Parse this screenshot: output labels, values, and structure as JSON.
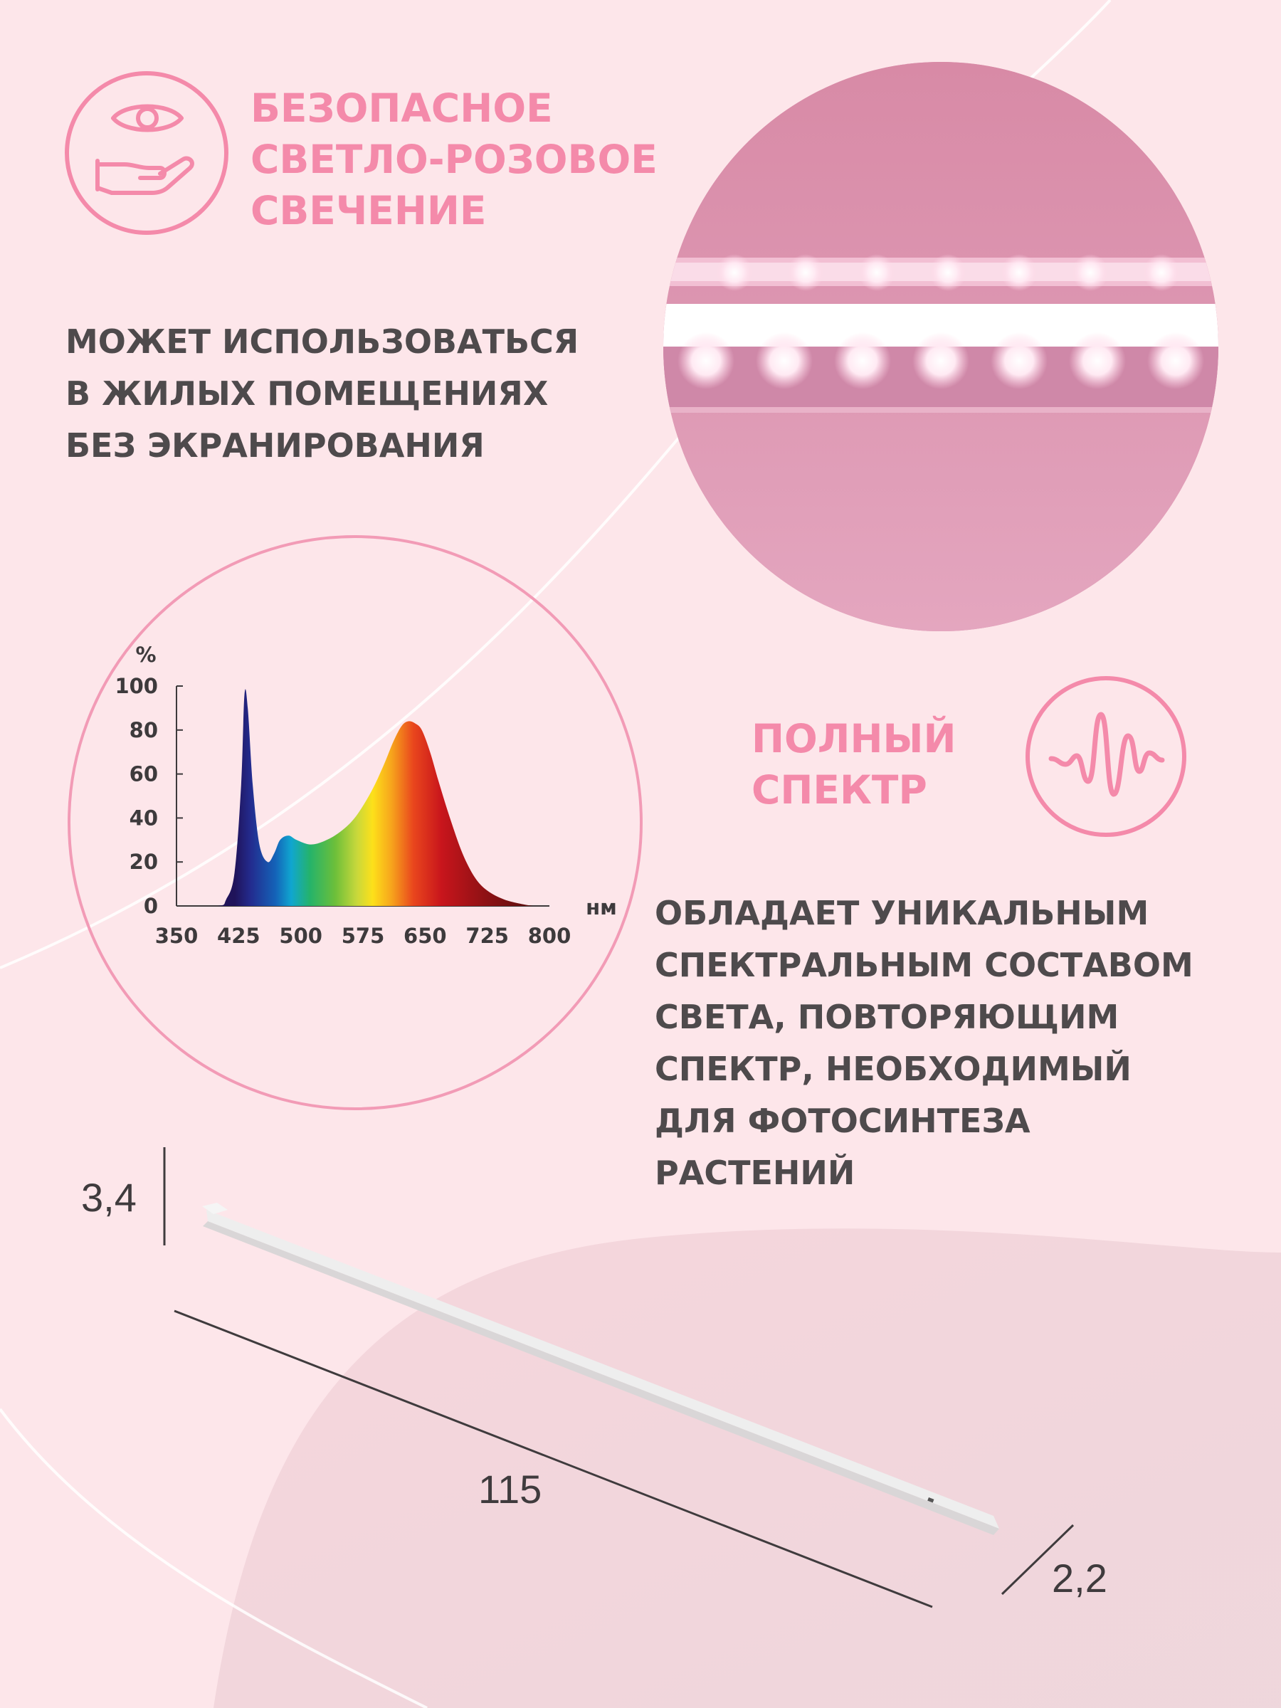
{
  "colors": {
    "background": "#fde6ea",
    "accent_pink": "#f48aaa",
    "text_dark": "#4e4a4c",
    "photo_pink": "#d98fa8"
  },
  "feature_safe": {
    "icon": "eye-hand-icon",
    "title_lines": [
      "БЕЗОПАСНОЕ",
      "СВЕТЛО-РОЗОВОЕ",
      "СВЕЧЕНИЕ"
    ],
    "desc_lines": [
      "МОЖЕТ ИСПОЛЬЗОВАТЬСЯ",
      "В ЖИЛЫХ ПОМЕЩЕНИЯХ",
      "БЕЗ ЭКРАНИРОВАНИЯ"
    ]
  },
  "feature_spectrum": {
    "icon": "waveform-icon",
    "title_lines": [
      "ПОЛНЫЙ",
      "СПЕКТР"
    ],
    "desc_lines": [
      "ОБЛАДАЕТ УНИКАЛЬНЫМ",
      "СПЕКТРАЛЬНЫМ СОСТАВОМ",
      "СВЕТА, ПОВТОРЯЮЩИМ",
      "СПЕКТР, НЕОБХОДИМЫЙ",
      "ДЛЯ ФОТОСИНТЕЗА",
      "РАСТЕНИЙ"
    ]
  },
  "chart_data": {
    "type": "area",
    "ylabel": "%",
    "xlabel": "нм",
    "ylim": [
      0,
      100
    ],
    "xlim": [
      350,
      800
    ],
    "yticks": [
      "0",
      "20",
      "40",
      "60",
      "80",
      "100"
    ],
    "xticks": [
      "350",
      "425",
      "500",
      "575",
      "650",
      "725",
      "800"
    ],
    "series": [
      {
        "x": [
          350,
          400,
          410,
          420,
          428,
          432,
          436,
          442,
          450,
          460,
          468,
          475,
          485,
          495,
          510,
          525,
          545,
          565,
          585,
          600,
          612,
          622,
          630,
          638,
          646,
          656,
          666,
          680,
          695,
          710,
          725,
          745,
          765,
          780
        ],
        "y": [
          0,
          0,
          3,
          15,
          55,
          96,
          90,
          55,
          28,
          20,
          24,
          30,
          32,
          30,
          28,
          29,
          33,
          40,
          52,
          64,
          75,
          82,
          84,
          83,
          80,
          70,
          57,
          40,
          24,
          13,
          7,
          3,
          1,
          0
        ]
      }
    ]
  },
  "dimensions": {
    "height": "3,4",
    "length": "115",
    "depth": "2,2"
  }
}
